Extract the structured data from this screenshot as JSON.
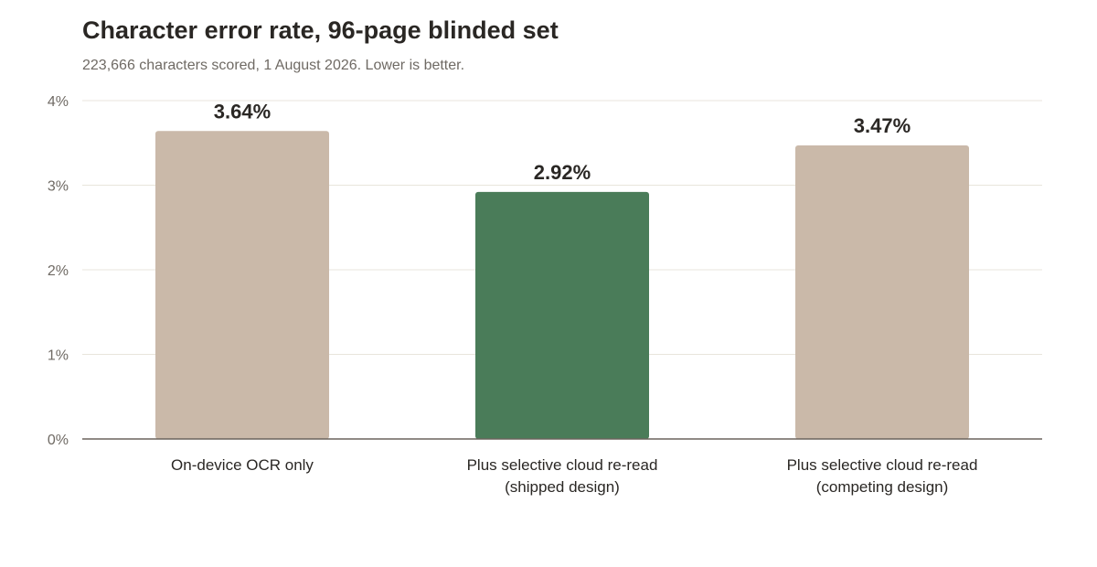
{
  "chart_data": {
    "type": "bar",
    "title": "Character error rate, 96-page blinded set",
    "subtitle": "223,666 characters scored, 1 August 2026. Lower is better.",
    "categories": [
      [
        "On-device OCR only"
      ],
      [
        "Plus selective cloud re-read",
        "(shipped design)"
      ],
      [
        "Plus selective cloud re-read",
        "(competing design)"
      ]
    ],
    "values": [
      3.64,
      2.92,
      3.47
    ],
    "value_labels": [
      "3.64%",
      "2.92%",
      "3.47%"
    ],
    "highlight_index": 1,
    "ylim": [
      0,
      4
    ],
    "yticks": [
      0,
      1,
      2,
      3,
      4
    ],
    "ytick_labels": [
      "0%",
      "1%",
      "2%",
      "3%",
      "4%"
    ],
    "grid": true,
    "colors": {
      "bar": "#cab9a9",
      "highlight": "#4a7c59",
      "grid": "#e8e5dc",
      "axis": "#6b645d"
    }
  }
}
